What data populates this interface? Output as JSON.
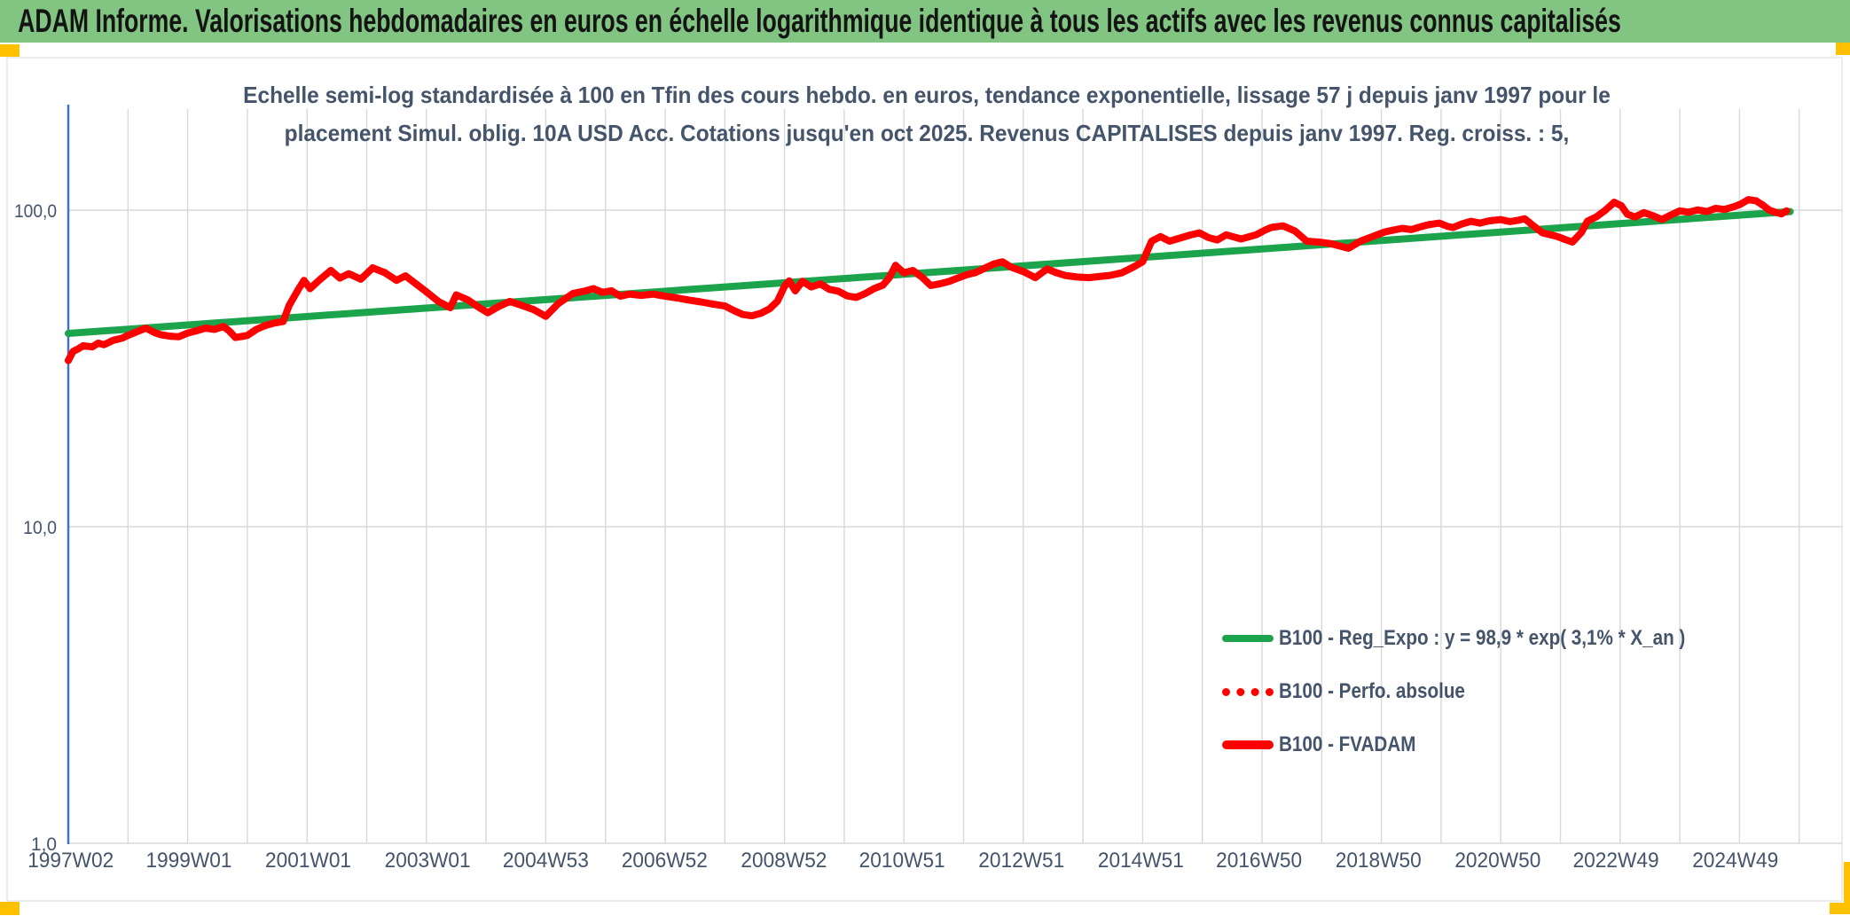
{
  "header": {
    "title": "ADAM Informe. Valorisations hebdomadaires en euros en échelle logarithmique identique à tous les actifs avec les revenus connus capitalisés"
  },
  "chart": {
    "title_line1": "Echelle semi-log standardisée à 100 en Tfin des cours hebdo. en euros, tendance exponentielle, lissage 57 j depuis janv 1997 pour le",
    "title_line2": "placement Simul. oblig. 10A USD Acc. Cotations jusqu'en oct 2025. Revenus CAPITALISES depuis janv 1997. Reg. croiss. : 5,"
  },
  "legend": {
    "items": [
      {
        "label": "B100 - Reg_Expo : y = 98,9 * exp( 3,1% *  X_an )",
        "color": "#1CA44C",
        "style": "solid"
      },
      {
        "label": "B100 - Perfo. absolue",
        "color": "#FF0000",
        "style": "dotted"
      },
      {
        "label": "B100 - FVADAM",
        "color": "#FF0000",
        "style": "solid"
      }
    ]
  },
  "colors": {
    "header_bg": "#82C482",
    "accent_yellow": "#FFC000",
    "axis_line_blue": "#4472C4",
    "grid": "#D9D9D9",
    "text": "#44546A",
    "series_red": "#FF0000",
    "series_green": "#1CA44C"
  },
  "chart_data": {
    "type": "line",
    "y_scale": "log10",
    "title": "Echelle semi-log standardisée à 100 en Tfin des cours hebdo. en euros, tendance exponentielle, lissage 57 j depuis janv 1997 pour le placement Simul. oblig. 10A USD Acc. Cotations jusqu'en oct 2025. Revenus CAPITALISES depuis janv 1997. Reg. croiss. : 5,",
    "xlabel": "",
    "ylabel": "",
    "grid": true,
    "legend_position": "middle-right",
    "ylim": [
      1,
      215
    ],
    "xlim": [
      1997.0,
      2026.8
    ],
    "y_ticks": [
      {
        "label": "100,0",
        "value": 100
      },
      {
        "label": "10,0",
        "value": 10
      },
      {
        "label": "1,0",
        "value": 1
      }
    ],
    "x_ticks": [
      {
        "label": "1997W02",
        "year": 1997.04
      },
      {
        "label": "1999W01",
        "year": 1999.02
      },
      {
        "label": "2001W01",
        "year": 2001.02
      },
      {
        "label": "2003W01",
        "year": 2003.02
      },
      {
        "label": "2004W53",
        "year": 2005.0
      },
      {
        "label": "2006W52",
        "year": 2006.99
      },
      {
        "label": "2008W52",
        "year": 2008.99
      },
      {
        "label": "2010W51",
        "year": 2010.97
      },
      {
        "label": "2012W51",
        "year": 2012.97
      },
      {
        "label": "2014W51",
        "year": 2014.97
      },
      {
        "label": "2016W50",
        "year": 2016.95
      },
      {
        "label": "2018W50",
        "year": 2018.95
      },
      {
        "label": "2020W50",
        "year": 2020.95
      },
      {
        "label": "2022W49",
        "year": 2022.93
      },
      {
        "label": "2024W49",
        "year": 2024.93
      }
    ],
    "series": [
      {
        "name": "B100 - Reg_Expo : y = 98,9 * exp( 3,1% *  X_an )",
        "color": "#1CA44C",
        "style": "solid",
        "width": 8,
        "points": [
          [
            1997.0,
            40.8
          ],
          [
            2025.85,
            99.0
          ]
        ]
      },
      {
        "name": "B100 - Perfo. absolue",
        "color": "#FF0000",
        "style": "dotted",
        "width": 8,
        "points_ref": "B100 - FVADAM",
        "note": "coincides with B100 - FVADAM in the plot (hidden beneath)"
      },
      {
        "name": "B100 - FVADAM",
        "color": "#FF0000",
        "style": "solid",
        "width": 8,
        "points": [
          [
            1997.0,
            33.5
          ],
          [
            1997.08,
            35.8
          ],
          [
            1997.17,
            36.5
          ],
          [
            1997.25,
            37.3
          ],
          [
            1997.4,
            37.0
          ],
          [
            1997.5,
            38.0
          ],
          [
            1997.6,
            37.6
          ],
          [
            1997.75,
            38.8
          ],
          [
            1997.9,
            39.4
          ],
          [
            1998.0,
            40.2
          ],
          [
            1998.15,
            41.3
          ],
          [
            1998.3,
            42.4
          ],
          [
            1998.45,
            41.0
          ],
          [
            1998.55,
            40.4
          ],
          [
            1998.7,
            40.0
          ],
          [
            1998.85,
            39.8
          ],
          [
            1999.0,
            40.9
          ],
          [
            1999.15,
            41.6
          ],
          [
            1999.3,
            42.4
          ],
          [
            1999.45,
            42.0
          ],
          [
            1999.6,
            42.9
          ],
          [
            1999.7,
            41.5
          ],
          [
            1999.8,
            39.6
          ],
          [
            1999.9,
            39.9
          ],
          [
            2000.0,
            40.2
          ],
          [
            2000.15,
            42.0
          ],
          [
            2000.3,
            43.2
          ],
          [
            2000.45,
            44.0
          ],
          [
            2000.6,
            44.5
          ],
          [
            2000.7,
            50.0
          ],
          [
            2000.85,
            56.0
          ],
          [
            2000.95,
            60.0
          ],
          [
            2001.05,
            56.5
          ],
          [
            2001.2,
            60.0
          ],
          [
            2001.4,
            64.5
          ],
          [
            2001.55,
            61.0
          ],
          [
            2001.7,
            63.0
          ],
          [
            2001.9,
            60.5
          ],
          [
            2002.1,
            65.7
          ],
          [
            2002.3,
            63.5
          ],
          [
            2002.5,
            60.0
          ],
          [
            2002.65,
            62.0
          ],
          [
            2002.8,
            59.0
          ],
          [
            2003.0,
            55.2
          ],
          [
            2003.2,
            51.5
          ],
          [
            2003.4,
            49.2
          ],
          [
            2003.5,
            54.0
          ],
          [
            2003.7,
            52.0
          ],
          [
            2003.9,
            49.0
          ],
          [
            2004.03,
            47.4
          ],
          [
            2004.2,
            49.5
          ],
          [
            2004.4,
            51.5
          ],
          [
            2004.6,
            50.0
          ],
          [
            2004.8,
            48.5
          ],
          [
            2005.0,
            46.2
          ],
          [
            2005.2,
            50.5
          ],
          [
            2005.45,
            54.5
          ],
          [
            2005.65,
            55.5
          ],
          [
            2005.8,
            56.5
          ],
          [
            2005.95,
            55.0
          ],
          [
            2006.1,
            55.6
          ],
          [
            2006.25,
            53.5
          ],
          [
            2006.4,
            54.3
          ],
          [
            2006.6,
            53.8
          ],
          [
            2006.8,
            54.3
          ],
          [
            2007.0,
            53.5
          ],
          [
            2007.2,
            52.8
          ],
          [
            2007.4,
            52.0
          ],
          [
            2007.6,
            51.3
          ],
          [
            2007.8,
            50.5
          ],
          [
            2008.0,
            49.8
          ],
          [
            2008.15,
            48.2
          ],
          [
            2008.3,
            46.8
          ],
          [
            2008.45,
            46.4
          ],
          [
            2008.6,
            47.2
          ],
          [
            2008.75,
            48.8
          ],
          [
            2008.88,
            51.5
          ],
          [
            2009.0,
            57.5
          ],
          [
            2009.08,
            59.8
          ],
          [
            2009.18,
            55.6
          ],
          [
            2009.3,
            59.6
          ],
          [
            2009.45,
            57.2
          ],
          [
            2009.6,
            58.5
          ],
          [
            2009.75,
            56.2
          ],
          [
            2009.9,
            55.5
          ],
          [
            2010.05,
            53.6
          ],
          [
            2010.2,
            53.0
          ],
          [
            2010.35,
            54.5
          ],
          [
            2010.5,
            56.5
          ],
          [
            2010.65,
            58.0
          ],
          [
            2010.75,
            61.0
          ],
          [
            2010.86,
            66.9
          ],
          [
            2011.0,
            63.4
          ],
          [
            2011.15,
            64.5
          ],
          [
            2011.3,
            61.5
          ],
          [
            2011.45,
            57.8
          ],
          [
            2011.6,
            58.5
          ],
          [
            2011.75,
            59.5
          ],
          [
            2011.9,
            61.0
          ],
          [
            2012.05,
            62.5
          ],
          [
            2012.2,
            63.5
          ],
          [
            2012.35,
            65.5
          ],
          [
            2012.5,
            67.5
          ],
          [
            2012.65,
            68.7
          ],
          [
            2012.8,
            66.0
          ],
          [
            2013.0,
            64.0
          ],
          [
            2013.2,
            61.2
          ],
          [
            2013.4,
            65.2
          ],
          [
            2013.55,
            63.5
          ],
          [
            2013.7,
            62.2
          ],
          [
            2013.9,
            61.5
          ],
          [
            2014.1,
            61.2
          ],
          [
            2014.3,
            61.8
          ],
          [
            2014.45,
            62.2
          ],
          [
            2014.65,
            63.4
          ],
          [
            2014.85,
            66.2
          ],
          [
            2015.0,
            68.7
          ],
          [
            2015.15,
            79.8
          ],
          [
            2015.3,
            82.5
          ],
          [
            2015.45,
            79.8
          ],
          [
            2015.65,
            81.9
          ],
          [
            2015.8,
            83.5
          ],
          [
            2015.95,
            84.8
          ],
          [
            2016.1,
            82.0
          ],
          [
            2016.25,
            80.5
          ],
          [
            2016.4,
            83.6
          ],
          [
            2016.65,
            81.1
          ],
          [
            2016.9,
            83.6
          ],
          [
            2017.05,
            86.5
          ],
          [
            2017.15,
            88.1
          ],
          [
            2017.35,
            89.2
          ],
          [
            2017.55,
            86.0
          ],
          [
            2017.75,
            79.8
          ],
          [
            2017.95,
            79.3
          ],
          [
            2018.15,
            78.4
          ],
          [
            2018.35,
            76.6
          ],
          [
            2018.45,
            75.8
          ],
          [
            2018.65,
            79.8
          ],
          [
            2018.85,
            82.5
          ],
          [
            2019.05,
            85.3
          ],
          [
            2019.2,
            86.5
          ],
          [
            2019.35,
            87.6
          ],
          [
            2019.5,
            86.8
          ],
          [
            2019.65,
            88.5
          ],
          [
            2019.8,
            90.0
          ],
          [
            2019.97,
            91.0
          ],
          [
            2020.1,
            89.0
          ],
          [
            2020.2,
            88.1
          ],
          [
            2020.35,
            90.5
          ],
          [
            2020.5,
            92.2
          ],
          [
            2020.65,
            91.0
          ],
          [
            2020.8,
            92.5
          ],
          [
            2021.0,
            93.4
          ],
          [
            2021.15,
            92.0
          ],
          [
            2021.3,
            93.0
          ],
          [
            2021.4,
            94.0
          ],
          [
            2021.55,
            89.2
          ],
          [
            2021.7,
            84.8
          ],
          [
            2021.85,
            83.5
          ],
          [
            2021.95,
            82.5
          ],
          [
            2022.1,
            80.5
          ],
          [
            2022.2,
            79.3
          ],
          [
            2022.35,
            85.0
          ],
          [
            2022.45,
            92.2
          ],
          [
            2022.6,
            95.2
          ],
          [
            2022.75,
            99.9
          ],
          [
            2022.9,
            105.9
          ],
          [
            2023.02,
            103.3
          ],
          [
            2023.12,
            97.1
          ],
          [
            2023.25,
            95.2
          ],
          [
            2023.4,
            98.2
          ],
          [
            2023.55,
            96.0
          ],
          [
            2023.7,
            93.4
          ],
          [
            2023.85,
            96.5
          ],
          [
            2024.0,
            99.5
          ],
          [
            2024.15,
            98.5
          ],
          [
            2024.3,
            100.2
          ],
          [
            2024.45,
            99.0
          ],
          [
            2024.6,
            101.3
          ],
          [
            2024.75,
            100.5
          ],
          [
            2024.9,
            102.5
          ],
          [
            2025.02,
            104.5
          ],
          [
            2025.15,
            108.0
          ],
          [
            2025.28,
            107.0
          ],
          [
            2025.4,
            103.5
          ],
          [
            2025.5,
            100.0
          ],
          [
            2025.6,
            98.5
          ],
          [
            2025.7,
            97.3
          ],
          [
            2025.79,
            99.5
          ]
        ]
      }
    ]
  }
}
